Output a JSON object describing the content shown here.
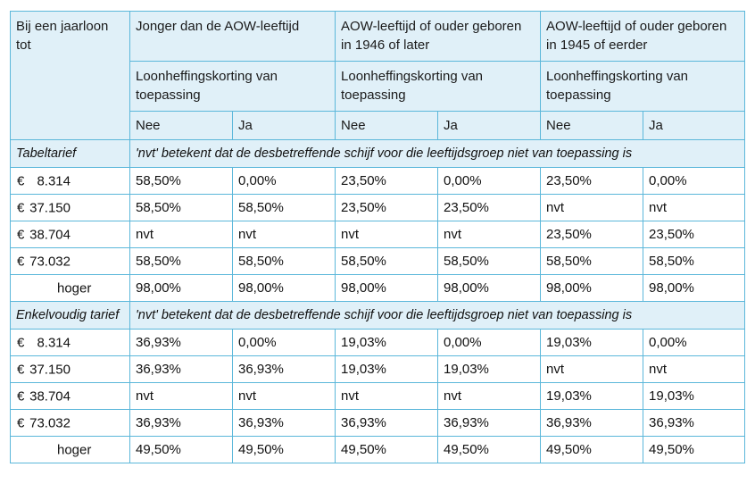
{
  "header": {
    "col0": "Bij een jaarloon tot",
    "groups": [
      "Jonger dan de AOW-leeftijd",
      "AOW-leeftijd of ouder geboren in 1946 of later",
      "AOW-leeftijd of ouder geboren in 1945 of eerder"
    ],
    "subheader": "Loonheffingskorting van toepassing",
    "nee": "Nee",
    "ja": "Ja"
  },
  "sections": [
    {
      "title": "Tabeltarief",
      "note": "'nvt' betekent dat de desbetreffende schijf voor die leeftijdsgroep niet van toepassing is",
      "rows": [
        {
          "currency": "€",
          "amount": "8.314",
          "values": [
            "58,50%",
            "0,00%",
            "23,50%",
            "0,00%",
            "23,50%",
            "0,00%"
          ]
        },
        {
          "currency": "€",
          "amount": "37.150",
          "values": [
            "58,50%",
            "58,50%",
            "23,50%",
            "23,50%",
            "nvt",
            "nvt"
          ]
        },
        {
          "currency": "€",
          "amount": "38.704",
          "values": [
            "nvt",
            "nvt",
            "nvt",
            "nvt",
            "23,50%",
            "23,50%"
          ]
        },
        {
          "currency": "€",
          "amount": "73.032",
          "values": [
            "58,50%",
            "58,50%",
            "58,50%",
            "58,50%",
            "58,50%",
            "58,50%"
          ]
        },
        {
          "currency": "",
          "amount": "hoger",
          "values": [
            "98,00%",
            "98,00%",
            "98,00%",
            "98,00%",
            "98,00%",
            "98,00%"
          ]
        }
      ]
    },
    {
      "title": "Enkelvoudig tarief",
      "note": "'nvt' betekent dat de desbetreffende schijf voor die leeftijdsgroep niet van toepassing is",
      "rows": [
        {
          "currency": "€",
          "amount": "8.314",
          "values": [
            "36,93%",
            "0,00%",
            "19,03%",
            "0,00%",
            "19,03%",
            "0,00%"
          ]
        },
        {
          "currency": "€",
          "amount": "37.150",
          "values": [
            "36,93%",
            "36,93%",
            "19,03%",
            "19,03%",
            "nvt",
            "nvt"
          ]
        },
        {
          "currency": "€",
          "amount": "38.704",
          "values": [
            "nvt",
            "nvt",
            "nvt",
            "nvt",
            "19,03%",
            "19,03%"
          ]
        },
        {
          "currency": "€",
          "amount": "73.032",
          "values": [
            "36,93%",
            "36,93%",
            "36,93%",
            "36,93%",
            "36,93%",
            "36,93%"
          ]
        },
        {
          "currency": "",
          "amount": "hoger",
          "values": [
            "49,50%",
            "49,50%",
            "49,50%",
            "49,50%",
            "49,50%",
            "49,50%"
          ]
        }
      ]
    }
  ],
  "colors": {
    "border": "#5bb7da",
    "header_bg": "#e0f0f8"
  }
}
